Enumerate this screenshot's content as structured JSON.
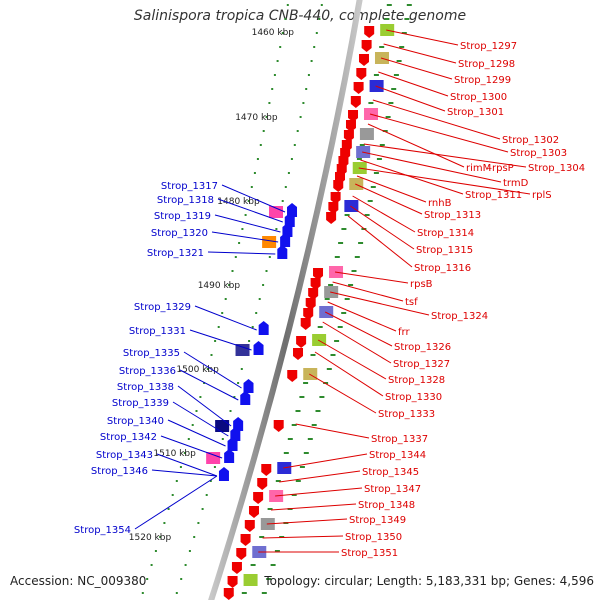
{
  "title": "Salinispora tropica CNB-440, complete genome",
  "accession": "Accession: NC_009380",
  "topology": "Topology: circular; Length: 5,183,331 bp; Genes: 4,596",
  "colors": {
    "backbone": "#8a8a8a",
    "tick": "#2e8b2e",
    "right_label": "#dd0000",
    "left_label": "#0000cc"
  },
  "kbp_labels": [
    "1460 kbp",
    "1470 kbp",
    "1480 kbp",
    "1490 kbp",
    "1500 kbp",
    "1510 kbp",
    "1520 kbp"
  ],
  "right_genes": [
    "Strop_1297",
    "Strop_1298",
    "Strop_1299",
    "Strop_1300",
    "Strop_1301",
    "Strop_1302",
    "Strop_1303",
    "rimM",
    "rpsP",
    "Strop_1304",
    "trmD",
    "Strop_1311",
    "rplS",
    "rnhB",
    "Strop_1313",
    "Strop_1314",
    "Strop_1315",
    "Strop_1316",
    "rpsB",
    "tsf",
    "Strop_1324",
    "frr",
    "Strop_1326",
    "Strop_1327",
    "Strop_1328",
    "Strop_1330",
    "Strop_1333",
    "Strop_1337",
    "Strop_1344",
    "Strop_1345",
    "Strop_1347",
    "Strop_1348",
    "Strop_1349",
    "Strop_1350",
    "Strop_1351"
  ],
  "left_genes": [
    "Strop_1317",
    "Strop_1318",
    "Strop_1319",
    "Strop_1320",
    "Strop_1321",
    "Strop_1329",
    "Strop_1331",
    "Strop_1335",
    "Strop_1336",
    "Strop_1338",
    "Strop_1339",
    "Strop_1340",
    "Strop_1342",
    "Strop_1343",
    "Strop_1346",
    "Strop_1354"
  ]
}
